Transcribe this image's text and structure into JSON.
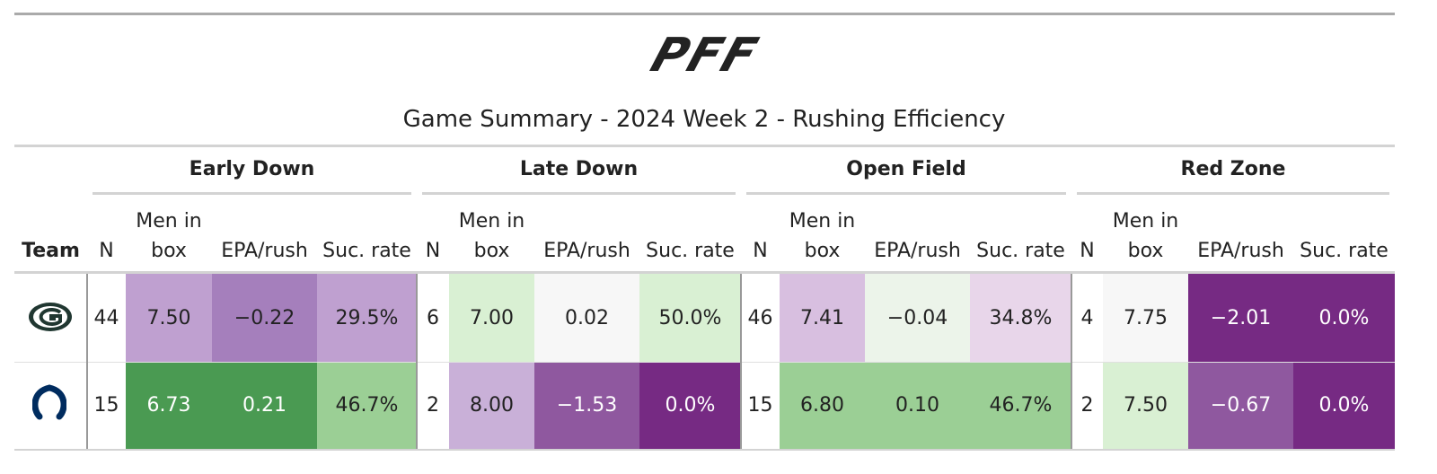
{
  "logo": "PFF",
  "title": "Game Summary - 2024 Week 2 - Rushing Efficiency",
  "table": {
    "team_header": "Team",
    "groups": [
      {
        "name": "Early Down",
        "columns": [
          "N",
          "Men in box",
          "EPA/rush",
          "Suc. rate"
        ]
      },
      {
        "name": "Late Down",
        "columns": [
          "N",
          "Men in box",
          "EPA/rush",
          "Suc. rate"
        ]
      },
      {
        "name": "Open Field",
        "columns": [
          "N",
          "Men in box",
          "EPA/rush",
          "Suc. rate"
        ]
      },
      {
        "name": "Red Zone",
        "columns": [
          "N",
          "Men in box",
          "EPA/rush",
          "Suc. rate"
        ]
      }
    ],
    "rows": [
      {
        "cells": [
          "44",
          "7.50",
          "−0.22",
          "29.5%",
          "6",
          "7.00",
          "0.02",
          "50.0%",
          "46",
          "7.41",
          "−0.04",
          "34.8%",
          "4",
          "7.75",
          "−2.01",
          "0.0%"
        ],
        "fills": [
          "#ffffff",
          "#bfa0d0",
          "#a57fbc",
          "#bfa0d0",
          "#ffffff",
          "#d9f0d3",
          "#f7f7f7",
          "#d9f0d3",
          "#ffffff",
          "#d8bfe0",
          "#ecf4ea",
          "#e8d6ea",
          "#ffffff",
          "#f7f7f7",
          "#762a83",
          "#762a83"
        ]
      },
      {
        "cells": [
          "15",
          "6.73",
          "0.21",
          "46.7%",
          "2",
          "8.00",
          "−1.53",
          "0.0%",
          "15",
          "6.80",
          "0.10",
          "46.7%",
          "2",
          "7.50",
          "−0.67",
          "0.0%"
        ],
        "fills": [
          "#ffffff",
          "#4a9a52",
          "#4a9a52",
          "#9bcf95",
          "#ffffff",
          "#c9b0d8",
          "#8f589f",
          "#762a83",
          "#ffffff",
          "#9bcf95",
          "#9bcf95",
          "#9bcf95",
          "#ffffff",
          "#d9f0d3",
          "#8f589f",
          "#762a83"
        ]
      }
    ]
  }
}
